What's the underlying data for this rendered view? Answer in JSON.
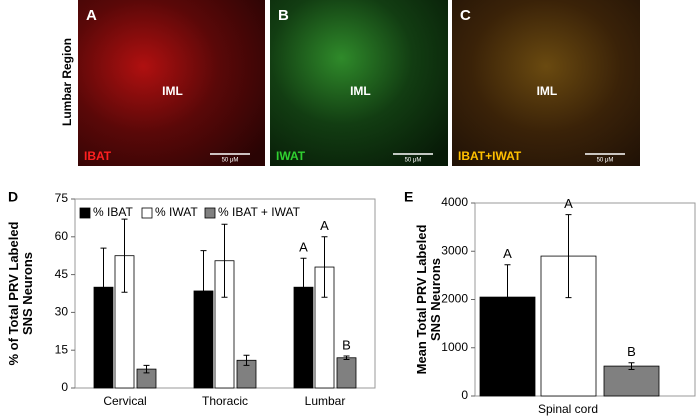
{
  "panels": [
    {
      "letter": "A",
      "region": "IML",
      "label": "IBAT",
      "scale": "50 μM"
    },
    {
      "letter": "B",
      "region": "IML",
      "label": "IWAT",
      "scale": "50 μM"
    },
    {
      "letter": "C",
      "region": "IML",
      "label": "IBAT+IWAT",
      "scale": "50 μM"
    }
  ],
  "row_label": "Lumbar Region",
  "chart_data": [
    {
      "type": "bar",
      "panel": "D",
      "ylabel": "% of Total PRV Labeled SNS Neurons",
      "categories": [
        "Cervical",
        "Thoracic",
        "Lumbar"
      ],
      "series": [
        {
          "name": "% IBAT",
          "color": "#000000",
          "values": [
            40,
            38.5,
            40
          ],
          "errors": [
            15.5,
            16,
            11.5
          ],
          "letters": [
            null,
            null,
            "A"
          ]
        },
        {
          "name": "% IWAT",
          "color": "#ffffff",
          "values": [
            52.5,
            50.5,
            48
          ],
          "errors": [
            14.5,
            14.5,
            12
          ],
          "letters": [
            null,
            null,
            "A"
          ]
        },
        {
          "name": "% IBAT + IWAT",
          "color": "#808080",
          "values": [
            7.5,
            11,
            12
          ],
          "errors": [
            1.5,
            2,
            0.7
          ],
          "letters": [
            null,
            null,
            "B"
          ]
        }
      ],
      "ylim": [
        0,
        75
      ],
      "yticks": [
        0,
        15,
        30,
        45,
        60,
        75
      ],
      "legend": "top"
    },
    {
      "type": "bar",
      "panel": "E",
      "ylabel": "Mean Total PRV Labeled SNS Neurons",
      "categories": [
        "Spinal cord"
      ],
      "series": [
        {
          "color": "#000000",
          "values": [
            2050
          ],
          "errors": [
            670
          ],
          "letters": [
            "A"
          ]
        },
        {
          "color": "#ffffff",
          "values": [
            2900
          ],
          "errors": [
            860
          ],
          "letters": [
            "A"
          ]
        },
        {
          "color": "#808080",
          "values": [
            620
          ],
          "errors": [
            70
          ],
          "letters": [
            "B"
          ]
        }
      ],
      "ylim": [
        0,
        4000
      ],
      "yticks": [
        0,
        1000,
        2000,
        3000,
        4000
      ]
    }
  ]
}
